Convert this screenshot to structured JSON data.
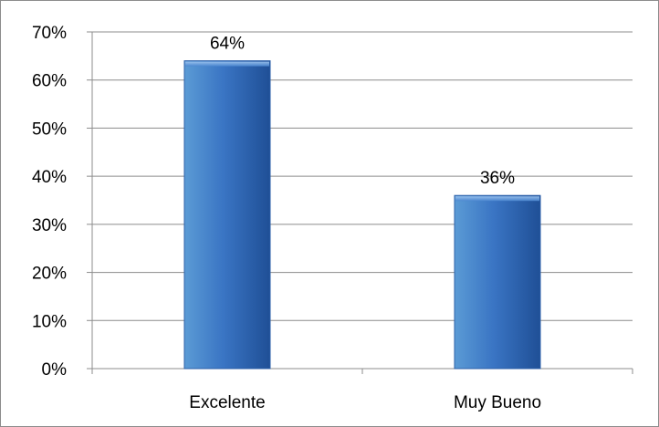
{
  "chart_data": {
    "type": "bar",
    "title": "",
    "xlabel": "",
    "ylabel": "",
    "categories": [
      "Excelente",
      "Muy Bueno"
    ],
    "values": [
      64,
      36
    ],
    "data_labels": [
      "64%",
      "36%"
    ],
    "ylim": [
      0,
      70
    ],
    "yticks": [
      0,
      10,
      20,
      30,
      40,
      50,
      60,
      70
    ],
    "ytick_labels": [
      "0%",
      "10%",
      "20%",
      "30%",
      "40%",
      "50%",
      "60%",
      "70%"
    ],
    "grid": true,
    "legend": "none",
    "colors": {
      "bar_light": "#5b9bd5",
      "bar_mid": "#3a75c4",
      "bar_dark": "#1f4f96",
      "gridline": "#8c8c8c",
      "axis": "#8c8c8c"
    }
  }
}
